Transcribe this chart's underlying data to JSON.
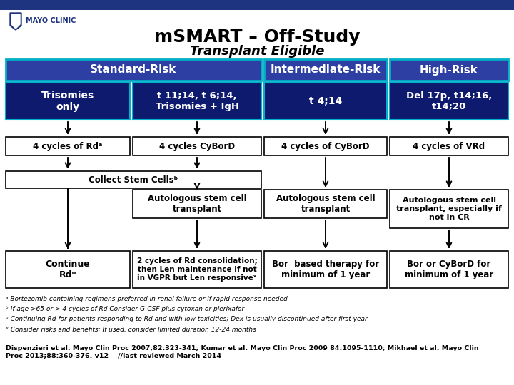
{
  "title": "mSMART – Off-Study",
  "subtitle": "Transplant Eligible",
  "bg_color": "#ffffff",
  "top_bar_color": "#1f3480",
  "medium_blue": "#2e3fa3",
  "dark_blue": "#0d1a6e",
  "teal_border": "#00b0c8",
  "footnotes": [
    "ᵃ Bortezomib containing regimens preferred in renal failure or if rapid response needed",
    "ᵇ If age >65 or > 4 cycles of Rd Consider G-CSF plus cytoxan or plerixafor",
    "ᵒ Continuing Rd for patients responding to Rd and with low toxicities; Dex is usually discontinued after first year",
    "ˣ Consider risks and benefits; If used, consider limited duration 12-24 months"
  ],
  "citation": "Dispenzieri et al. Mayo Clin Proc 2007;82:323-341; Kumar et al. Mayo Clin Proc 2009 84:1095-1110; Mikhael et al. Mayo Clin\nProc 2013;88:360-376. v12    //last reviewed March 2014"
}
